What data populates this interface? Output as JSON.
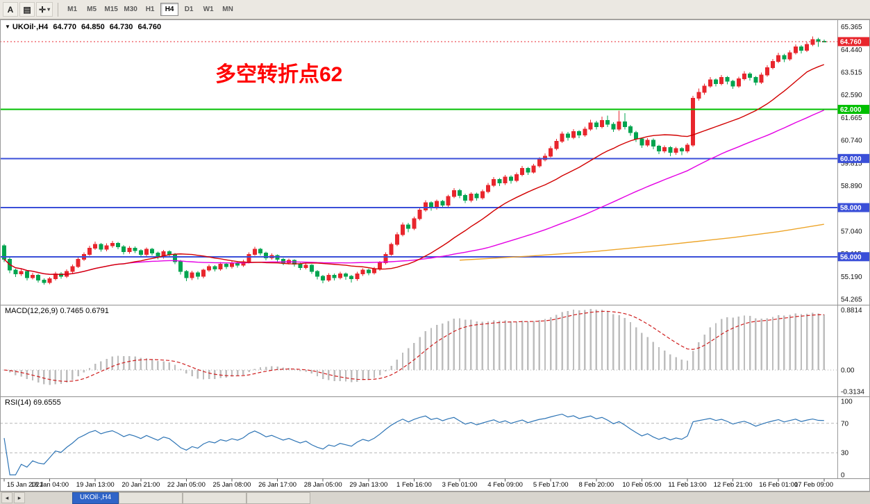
{
  "toolbar": {
    "buttons": [
      {
        "name": "annotate",
        "label": "A"
      },
      {
        "name": "templates",
        "label": "▤"
      },
      {
        "name": "crosshair",
        "label": "✛"
      }
    ],
    "caret": "▾",
    "timeframes": [
      "M1",
      "M5",
      "M15",
      "M30",
      "H1",
      "H4",
      "D1",
      "W1",
      "MN"
    ],
    "active_timeframe": "H4"
  },
  "symbol_info": {
    "dropdown_icon": "▼",
    "name": "UKOil·,H4",
    "open": "64.770",
    "high": "64.850",
    "low": "64.730",
    "close": "64.760"
  },
  "annotation": {
    "text": "多空转折点62",
    "color": "#ff0000"
  },
  "panels": {
    "macd_label": "MACD(12,26,9) 0.7465 0.6791",
    "rsi_label": "RSI(14) 69.6555"
  },
  "bottom_tabs": {
    "active_label": "UKOil·,H4",
    "scroll_left": "◂",
    "scroll_right": "▸"
  },
  "chart_data": {
    "type": "candlestick",
    "symbol": "UKOil",
    "timeframe": "H4",
    "title": "UKOil H4 candlestick chart with MACD and RSI",
    "colors": {
      "up": "#e8262d",
      "down": "#00a44f",
      "background": "#ffffff"
    },
    "y_axis": {
      "min": 54.1,
      "max": 65.55,
      "tick_labels": [
        "65.365",
        "64.440",
        "63.515",
        "62.590",
        "61.665",
        "60.740",
        "59.815",
        "58.890",
        "57.965",
        "57.040",
        "56.115",
        "55.190",
        "54.265"
      ]
    },
    "hlines": [
      {
        "price": 62.0,
        "label": "62.000",
        "color": "#00bf00",
        "width": 2
      },
      {
        "price": 60.0,
        "label": "60.000",
        "color": "#3a4fd8",
        "width": 2
      },
      {
        "price": 58.0,
        "label": "58.000",
        "color": "#3a4fd8",
        "width": 2
      },
      {
        "price": 56.0,
        "label": "56.000",
        "color": "#3a4fd8",
        "width": 2
      }
    ],
    "current_price": {
      "value": 64.76,
      "label": "64.760",
      "color": "#e8262d"
    },
    "overlays": {
      "fast_ma": {
        "period": 21,
        "color": "#d20000"
      },
      "slow_ma": {
        "period": 55,
        "color": "#e400e4"
      },
      "long_ma": {
        "color": "#eda428",
        "points": [
          [
            80,
            55.86
          ],
          [
            92,
            56.02
          ],
          [
            104,
            56.22
          ],
          [
            116,
            56.48
          ],
          [
            128,
            56.78
          ],
          [
            136,
            57.02
          ],
          [
            144,
            57.32
          ]
        ]
      }
    },
    "macd": {
      "params": [
        12,
        26,
        9
      ],
      "histogram_color": "#bdbdbd",
      "signal_color": "#cf1d1d",
      "axis_labels": [
        {
          "v": 0.8814,
          "text": "0.8814"
        },
        {
          "v": 0.0,
          "text": "0.00"
        },
        {
          "v": -0.3134,
          "text": "-0.3134"
        }
      ]
    },
    "rsi": {
      "period": 14,
      "color": "#2d74b5",
      "levels": [
        70,
        30
      ],
      "axis_labels": [
        {
          "v": 100,
          "text": "100"
        },
        {
          "v": 70,
          "text": "70"
        },
        {
          "v": 30,
          "text": "30"
        },
        {
          "v": 0,
          "text": "0"
        }
      ]
    },
    "x_labels": [
      {
        "i": 0,
        "t": "15 Jan 2021"
      },
      {
        "i": 8,
        "t": "18 Jan 04:00"
      },
      {
        "i": 16,
        "t": "19 Jan 13:00"
      },
      {
        "i": 24,
        "t": "20 Jan 21:00"
      },
      {
        "i": 32,
        "t": "22 Jan 05:00"
      },
      {
        "i": 40,
        "t": "25 Jan 08:00"
      },
      {
        "i": 48,
        "t": "26 Jan 17:00"
      },
      {
        "i": 56,
        "t": "28 Jan 05:00"
      },
      {
        "i": 64,
        "t": "29 Jan 13:00"
      },
      {
        "i": 72,
        "t": "1 Feb 16:00"
      },
      {
        "i": 80,
        "t": "3 Feb 01:00"
      },
      {
        "i": 88,
        "t": "4 Feb 09:00"
      },
      {
        "i": 96,
        "t": "5 Feb 17:00"
      },
      {
        "i": 104,
        "t": "8 Feb 20:00"
      },
      {
        "i": 112,
        "t": "10 Feb 05:00"
      },
      {
        "i": 120,
        "t": "11 Feb 13:00"
      },
      {
        "i": 128,
        "t": "12 Feb 21:00"
      },
      {
        "i": 136,
        "t": "16 Feb 01:00"
      },
      {
        "i": 144,
        "t": "17 Feb 09:00"
      }
    ],
    "ohlc": [
      [
        56.45,
        56.52,
        55.78,
        55.9
      ],
      [
        55.9,
        55.96,
        55.33,
        55.45
      ],
      [
        55.45,
        55.52,
        55.18,
        55.3
      ],
      [
        55.3,
        55.5,
        55.22,
        55.4
      ],
      [
        55.4,
        55.46,
        55.03,
        55.15
      ],
      [
        55.15,
        55.34,
        55.07,
        55.25
      ],
      [
        55.25,
        55.3,
        54.95,
        55.05
      ],
      [
        55.05,
        55.12,
        54.86,
        54.95
      ],
      [
        54.95,
        55.18,
        54.88,
        55.1
      ],
      [
        55.1,
        55.38,
        55.04,
        55.3
      ],
      [
        55.3,
        55.37,
        55.1,
        55.2
      ],
      [
        55.2,
        55.48,
        55.13,
        55.4
      ],
      [
        55.4,
        55.68,
        55.33,
        55.6
      ],
      [
        55.6,
        55.98,
        55.54,
        55.9
      ],
      [
        55.9,
        56.18,
        55.83,
        56.1
      ],
      [
        56.1,
        56.44,
        56.03,
        56.35
      ],
      [
        56.35,
        56.62,
        56.28,
        56.5
      ],
      [
        56.5,
        56.56,
        56.2,
        56.3
      ],
      [
        56.3,
        56.55,
        56.22,
        56.45
      ],
      [
        56.45,
        56.65,
        56.36,
        56.55
      ],
      [
        56.55,
        56.6,
        56.3,
        56.4
      ],
      [
        56.4,
        56.47,
        56.1,
        56.2
      ],
      [
        56.2,
        56.43,
        56.12,
        56.35
      ],
      [
        56.35,
        56.42,
        56.15,
        56.25
      ],
      [
        56.25,
        56.31,
        56.0,
        56.1
      ],
      [
        56.1,
        56.38,
        56.02,
        56.3
      ],
      [
        56.3,
        56.36,
        56.05,
        56.15
      ],
      [
        56.15,
        56.21,
        55.9,
        56.0
      ],
      [
        56.0,
        56.28,
        55.93,
        56.2
      ],
      [
        56.2,
        56.26,
        56.0,
        56.1
      ],
      [
        56.1,
        56.15,
        55.7,
        55.8
      ],
      [
        55.8,
        55.86,
        55.28,
        55.4
      ],
      [
        55.4,
        55.46,
        55.0,
        55.15
      ],
      [
        55.15,
        55.43,
        55.05,
        55.35
      ],
      [
        55.35,
        55.41,
        55.08,
        55.2
      ],
      [
        55.2,
        55.52,
        55.12,
        55.45
      ],
      [
        55.45,
        55.68,
        55.38,
        55.6
      ],
      [
        55.6,
        55.66,
        55.4,
        55.5
      ],
      [
        55.5,
        55.78,
        55.43,
        55.7
      ],
      [
        55.7,
        55.76,
        55.5,
        55.6
      ],
      [
        55.6,
        55.83,
        55.52,
        55.75
      ],
      [
        55.75,
        55.81,
        55.55,
        55.65
      ],
      [
        55.65,
        55.88,
        55.58,
        55.8
      ],
      [
        55.8,
        56.18,
        55.73,
        56.1
      ],
      [
        56.1,
        56.4,
        56.03,
        56.3
      ],
      [
        56.3,
        56.36,
        56.05,
        56.15
      ],
      [
        56.15,
        56.2,
        55.85,
        55.95
      ],
      [
        55.95,
        56.13,
        55.88,
        56.05
      ],
      [
        56.05,
        56.1,
        55.8,
        55.9
      ],
      [
        55.9,
        55.95,
        55.65,
        55.75
      ],
      [
        55.75,
        55.93,
        55.68,
        55.85
      ],
      [
        55.85,
        55.9,
        55.6,
        55.7
      ],
      [
        55.7,
        55.76,
        55.45,
        55.55
      ],
      [
        55.55,
        55.73,
        55.48,
        55.65
      ],
      [
        55.65,
        55.7,
        55.3,
        55.4
      ],
      [
        55.4,
        55.46,
        55.08,
        55.2
      ],
      [
        55.2,
        55.26,
        54.92,
        55.05
      ],
      [
        55.05,
        55.33,
        54.98,
        55.25
      ],
      [
        55.25,
        55.31,
        55.03,
        55.15
      ],
      [
        55.15,
        55.38,
        55.08,
        55.3
      ],
      [
        55.3,
        55.36,
        55.06,
        55.2
      ],
      [
        55.2,
        55.26,
        54.95,
        55.1
      ],
      [
        55.1,
        55.38,
        55.02,
        55.3
      ],
      [
        55.3,
        55.53,
        55.22,
        55.45
      ],
      [
        55.45,
        55.51,
        55.25,
        55.35
      ],
      [
        55.35,
        55.58,
        55.28,
        55.5
      ],
      [
        55.5,
        55.83,
        55.43,
        55.75
      ],
      [
        55.75,
        56.18,
        55.68,
        56.1
      ],
      [
        56.1,
        56.58,
        56.03,
        56.5
      ],
      [
        56.5,
        57.0,
        56.43,
        56.9
      ],
      [
        56.9,
        57.4,
        56.83,
        57.3
      ],
      [
        57.3,
        57.38,
        57.0,
        57.15
      ],
      [
        57.15,
        57.63,
        57.08,
        57.55
      ],
      [
        57.55,
        58.0,
        57.48,
        57.9
      ],
      [
        57.9,
        58.3,
        57.83,
        58.2
      ],
      [
        58.2,
        58.26,
        57.88,
        58.0
      ],
      [
        58.0,
        58.33,
        57.92,
        58.25
      ],
      [
        58.25,
        58.31,
        57.98,
        58.1
      ],
      [
        58.1,
        58.53,
        58.03,
        58.45
      ],
      [
        58.45,
        58.8,
        58.38,
        58.7
      ],
      [
        58.7,
        58.76,
        58.38,
        58.5
      ],
      [
        58.5,
        58.56,
        58.18,
        58.3
      ],
      [
        58.3,
        58.63,
        58.22,
        58.55
      ],
      [
        58.55,
        58.61,
        58.28,
        58.4
      ],
      [
        58.4,
        58.73,
        58.33,
        58.65
      ],
      [
        58.65,
        59.0,
        58.58,
        58.9
      ],
      [
        58.9,
        59.25,
        58.83,
        59.15
      ],
      [
        59.15,
        59.21,
        58.88,
        59.0
      ],
      [
        59.0,
        59.33,
        58.92,
        59.25
      ],
      [
        59.25,
        59.31,
        58.98,
        59.1
      ],
      [
        59.1,
        59.43,
        59.03,
        59.35
      ],
      [
        59.35,
        59.7,
        59.28,
        59.6
      ],
      [
        59.6,
        59.66,
        59.33,
        59.45
      ],
      [
        59.45,
        59.78,
        59.38,
        59.7
      ],
      [
        59.7,
        60.05,
        59.63,
        59.95
      ],
      [
        59.95,
        60.2,
        59.88,
        60.1
      ],
      [
        60.1,
        60.5,
        60.03,
        60.4
      ],
      [
        60.4,
        60.8,
        60.33,
        60.7
      ],
      [
        60.7,
        61.1,
        60.63,
        61.0
      ],
      [
        61.0,
        61.08,
        60.73,
        60.85
      ],
      [
        60.85,
        61.2,
        60.78,
        61.1
      ],
      [
        61.1,
        61.16,
        60.83,
        60.95
      ],
      [
        60.95,
        61.3,
        60.88,
        61.2
      ],
      [
        61.2,
        61.58,
        61.13,
        61.45
      ],
      [
        61.45,
        61.53,
        61.18,
        61.3
      ],
      [
        61.3,
        61.7,
        61.23,
        61.55
      ],
      [
        61.55,
        61.75,
        61.28,
        61.4
      ],
      [
        61.4,
        61.48,
        61.08,
        61.2
      ],
      [
        61.2,
        61.95,
        61.13,
        61.5
      ],
      [
        61.5,
        61.85,
        61.18,
        61.3
      ],
      [
        61.3,
        61.36,
        60.93,
        61.05
      ],
      [
        61.05,
        61.12,
        60.68,
        60.8
      ],
      [
        60.8,
        60.86,
        60.43,
        60.55
      ],
      [
        60.55,
        60.83,
        60.48,
        60.75
      ],
      [
        60.75,
        60.81,
        60.38,
        60.5
      ],
      [
        60.5,
        60.56,
        60.18,
        60.3
      ],
      [
        60.3,
        60.53,
        60.22,
        60.45
      ],
      [
        60.45,
        60.51,
        60.1,
        60.25
      ],
      [
        60.25,
        60.48,
        60.15,
        60.4
      ],
      [
        60.4,
        60.46,
        60.13,
        60.3
      ],
      [
        60.3,
        60.63,
        60.22,
        60.55
      ],
      [
        60.55,
        62.55,
        60.48,
        62.45
      ],
      [
        62.45,
        62.85,
        62.35,
        62.7
      ],
      [
        62.7,
        63.05,
        62.6,
        62.95
      ],
      [
        62.95,
        63.32,
        62.88,
        63.2
      ],
      [
        63.2,
        63.26,
        62.93,
        63.05
      ],
      [
        63.05,
        63.4,
        62.98,
        63.3
      ],
      [
        63.3,
        63.36,
        63.02,
        63.15
      ],
      [
        63.15,
        63.21,
        62.83,
        62.95
      ],
      [
        62.95,
        63.33,
        62.88,
        63.25
      ],
      [
        63.25,
        63.55,
        63.18,
        63.45
      ],
      [
        63.45,
        63.51,
        63.17,
        63.3
      ],
      [
        63.3,
        63.36,
        62.98,
        63.1
      ],
      [
        63.1,
        63.5,
        63.03,
        63.4
      ],
      [
        63.4,
        63.8,
        63.33,
        63.7
      ],
      [
        63.7,
        64.05,
        63.63,
        63.95
      ],
      [
        63.95,
        64.3,
        63.88,
        64.2
      ],
      [
        64.2,
        64.26,
        63.93,
        64.05
      ],
      [
        64.05,
        64.4,
        63.98,
        64.3
      ],
      [
        64.3,
        64.65,
        64.23,
        64.55
      ],
      [
        64.55,
        64.61,
        64.28,
        64.4
      ],
      [
        64.4,
        64.75,
        64.33,
        64.65
      ],
      [
        64.65,
        64.97,
        64.58,
        64.85
      ],
      [
        64.85,
        64.92,
        64.55,
        64.77
      ],
      [
        64.77,
        64.85,
        64.73,
        64.76
      ]
    ]
  }
}
